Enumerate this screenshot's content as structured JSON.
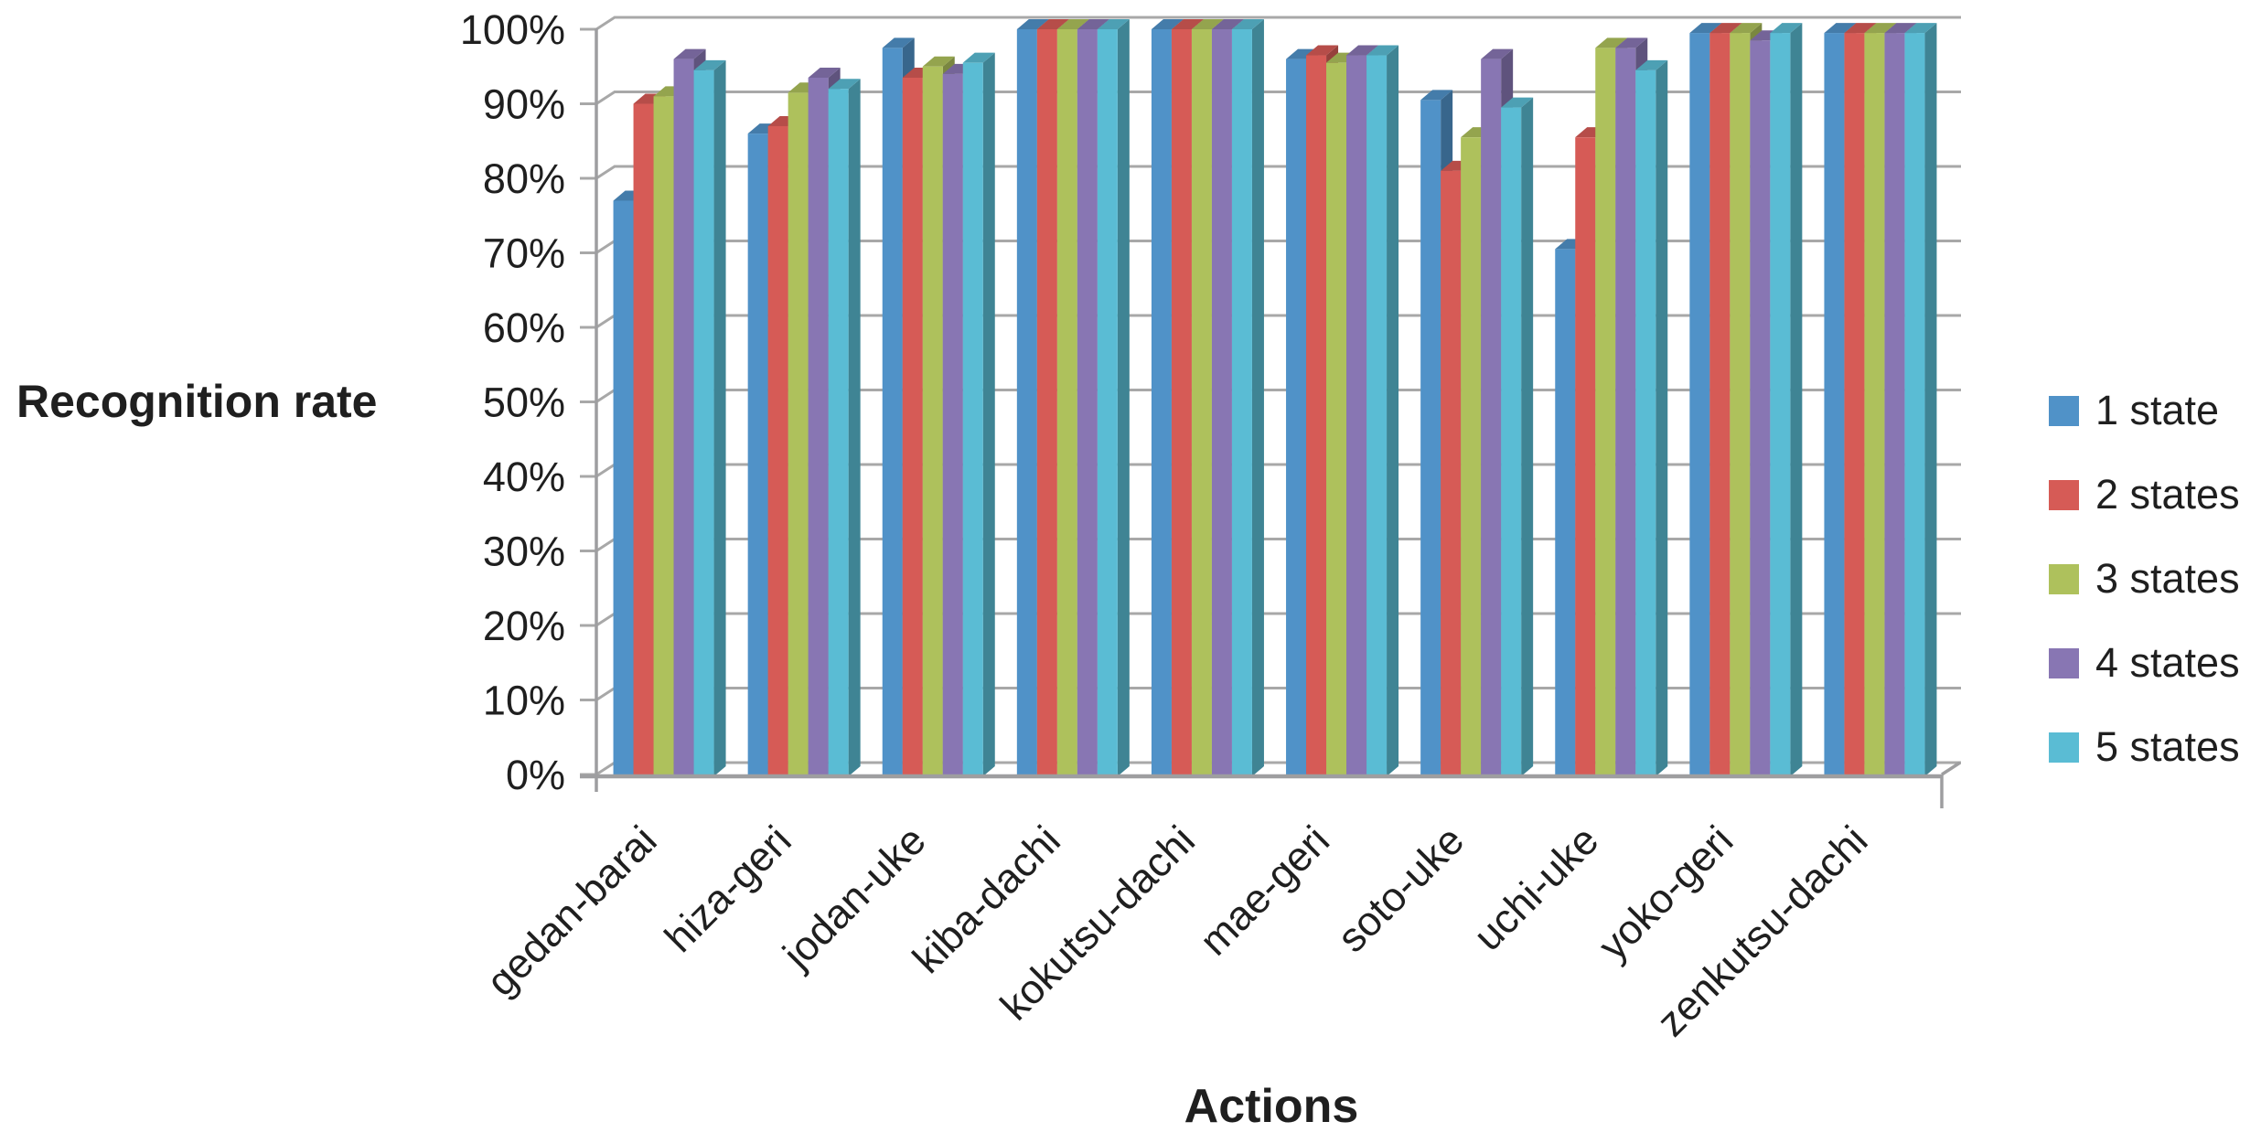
{
  "chart_data": {
    "type": "bar",
    "style": "3d-clustered-column",
    "title": "",
    "xlabel": "Actions",
    "ylabel": "Recognition rate",
    "categories": [
      "gedan-barai",
      "hiza-geri",
      "jodan-uke",
      "kiba-dachi",
      "kokutsu-dachi",
      "mae-geri",
      "soto-uke",
      "uchi-uke",
      "yoko-geri",
      "zenkutsu-dachi"
    ],
    "series": [
      {
        "name": "1 state",
        "color": "#5092C8",
        "values": [
          77,
          86,
          97.5,
          100,
          100,
          96,
          90.5,
          70.5,
          99.5,
          99.5
        ]
      },
      {
        "name": "2 states",
        "color": "#D65B56",
        "values": [
          90,
          87,
          93.5,
          100,
          100,
          96.5,
          81,
          85.5,
          99.5,
          99.5
        ]
      },
      {
        "name": "3 states",
        "color": "#AEC15C",
        "values": [
          91,
          91.5,
          95,
          100,
          100,
          95.5,
          85.5,
          97.5,
          99.5,
          99.5
        ]
      },
      {
        "name": "4 states",
        "color": "#8876B3",
        "values": [
          96,
          93.5,
          94,
          100,
          100,
          96.5,
          96,
          97.5,
          98.5,
          99.5
        ]
      },
      {
        "name": "5 states",
        "color": "#5ABCD4",
        "values": [
          94.5,
          92,
          95.5,
          100,
          100,
          96.5,
          89.5,
          94.5,
          99.5,
          99.5
        ]
      }
    ],
    "ylim": [
      0,
      100
    ],
    "ytick_step": 10,
    "ytick_suffix": "%",
    "grid": true,
    "legend_position": "right",
    "colors": {
      "gridline": "#A8A8A8",
      "frame": "#9E9EA0",
      "text": "#1F1F1F",
      "background": "#FFFFFF"
    }
  }
}
